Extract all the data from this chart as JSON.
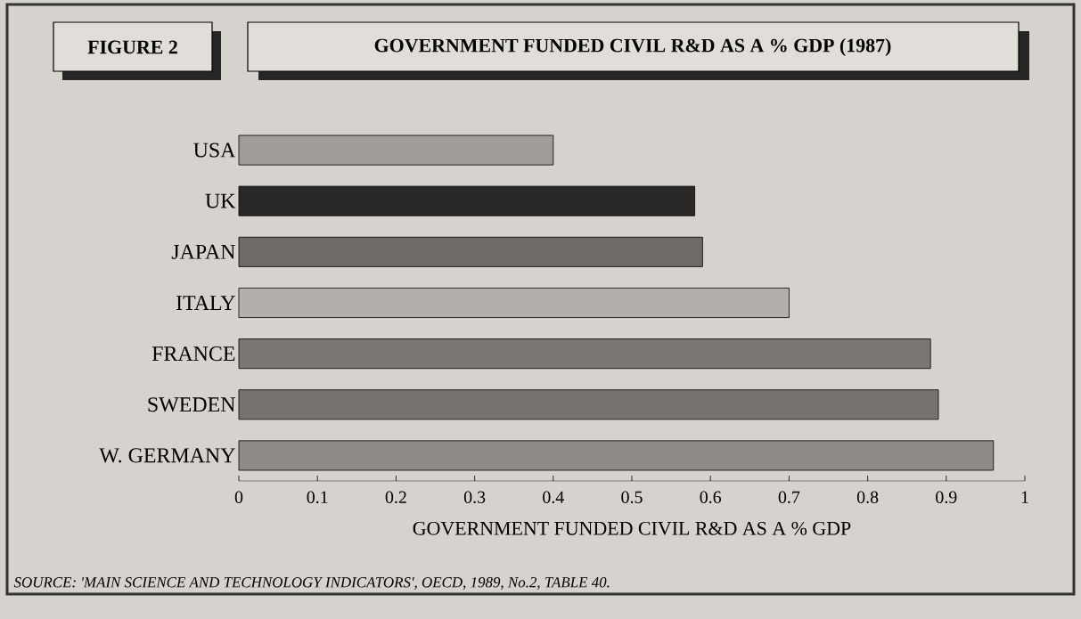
{
  "chart_data": {
    "type": "bar",
    "orientation": "horizontal",
    "title": "GOVERNMENT FUNDED CIVIL R&D AS A % GDP (1987)",
    "xlabel": "GOVERNMENT FUNDED CIVIL R&D AS A % GDP",
    "annotations": [
      "FIGURE 2",
      "*SOURCE: 'MAIN SCIENCE AND TECHNOLOGY INDICATORS', OECD, 1989, No.2, TABLE 40.*"
    ],
    "categories": [
      "USA",
      "UK",
      "JAPAN",
      "ITALY",
      "FRANCE",
      "SWEDEN",
      "W. GERMANY"
    ],
    "values": [
      0.4,
      0.58,
      0.59,
      0.7,
      0.88,
      0.89,
      0.96
    ],
    "colors": [
      "#a09c9a",
      "#2b2927",
      "#6e6a68",
      "#b3afac",
      "#7a7674",
      "#767270",
      "#8e8a88"
    ],
    "xlim": [
      0,
      1
    ],
    "xticks": [
      0,
      0.1,
      0.2,
      0.3,
      0.4,
      0.5,
      0.6,
      0.7,
      0.8,
      0.9,
      1
    ],
    "grid": false
  }
}
